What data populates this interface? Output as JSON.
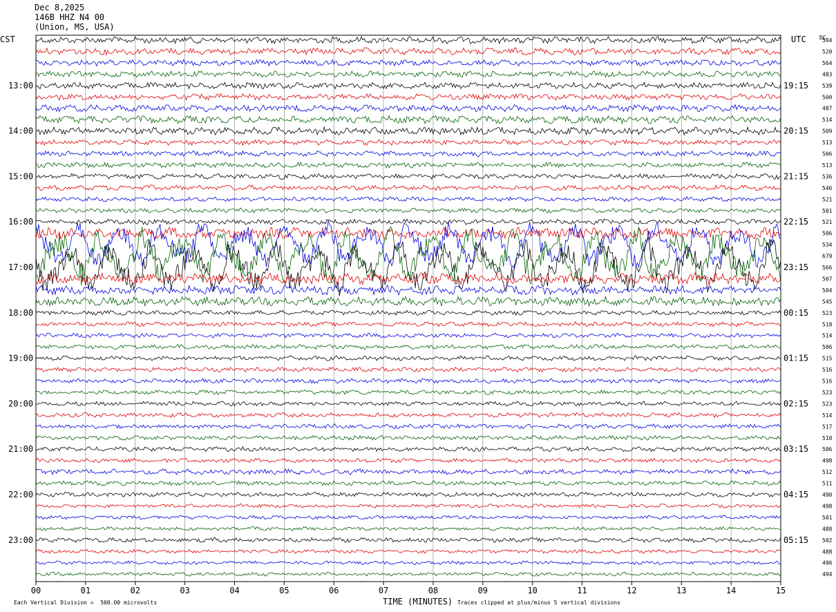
{
  "header": {
    "date": "Dec 8,2025",
    "station": "146B HHZ N4 00",
    "location": "(Union, MS, USA)"
  },
  "left_timezone": "CST",
  "right_timezone": "UTC",
  "dc_label": "DC",
  "footer": {
    "scale_note": "Each Vertical Division =  500.00 microvolts",
    "clip_note": "Traces clipped at plus/minus 5 vertical divisions"
  },
  "colors": {
    "trace_cycle": [
      "#000000",
      "#e00000",
      "#0000e0",
      "#006000"
    ],
    "grid": "#7f7f7f",
    "frame": "#000000"
  },
  "chart_data": {
    "type": "line",
    "subtype": "helicorder seismogram",
    "xlabel": "TIME (MINUTES)",
    "xlim": [
      0,
      15
    ],
    "x_ticks": [
      "00",
      "01",
      "02",
      "03",
      "04",
      "05",
      "06",
      "07",
      "08",
      "09",
      "10",
      "11",
      "12",
      "13",
      "14",
      "15"
    ],
    "minutes_per_line": 15,
    "left_hour_labels": [
      "13:00",
      "14:00",
      "15:00",
      "16:00",
      "17:00",
      "18:00",
      "19:00",
      "20:00",
      "21:00",
      "22:00",
      "23:00"
    ],
    "right_hour_labels": [
      "19:15",
      "20:15",
      "21:15",
      "22:15",
      "23:15",
      "00:15",
      "01:15",
      "02:15",
      "03:15",
      "04:15",
      "05:15"
    ],
    "dc_offsets": [
      504,
      520,
      564,
      483,
      539,
      500,
      487,
      514,
      509,
      513,
      506,
      513,
      536,
      546,
      521,
      501,
      521,
      506,
      534,
      679,
      566,
      507,
      504,
      545,
      523,
      518,
      514,
      506,
      515,
      516,
      516,
      523,
      523,
      514,
      517,
      510,
      506,
      498,
      512,
      511,
      490,
      498,
      501,
      488,
      502,
      488,
      496,
      494
    ],
    "trace_relative_amplitude": [
      0.9,
      0.9,
      0.8,
      0.8,
      0.8,
      0.8,
      0.9,
      1.0,
      1.0,
      0.7,
      0.7,
      0.7,
      0.7,
      0.7,
      0.6,
      0.6,
      0.7,
      1.5,
      3.0,
      3.5,
      3.5,
      1.5,
      1.2,
      1.2,
      0.6,
      0.6,
      0.6,
      0.6,
      0.6,
      0.6,
      0.6,
      0.6,
      0.6,
      0.6,
      0.6,
      0.6,
      0.6,
      0.6,
      0.7,
      0.6,
      0.6,
      0.5,
      0.5,
      0.5,
      0.6,
      0.5,
      0.5,
      0.5
    ]
  }
}
